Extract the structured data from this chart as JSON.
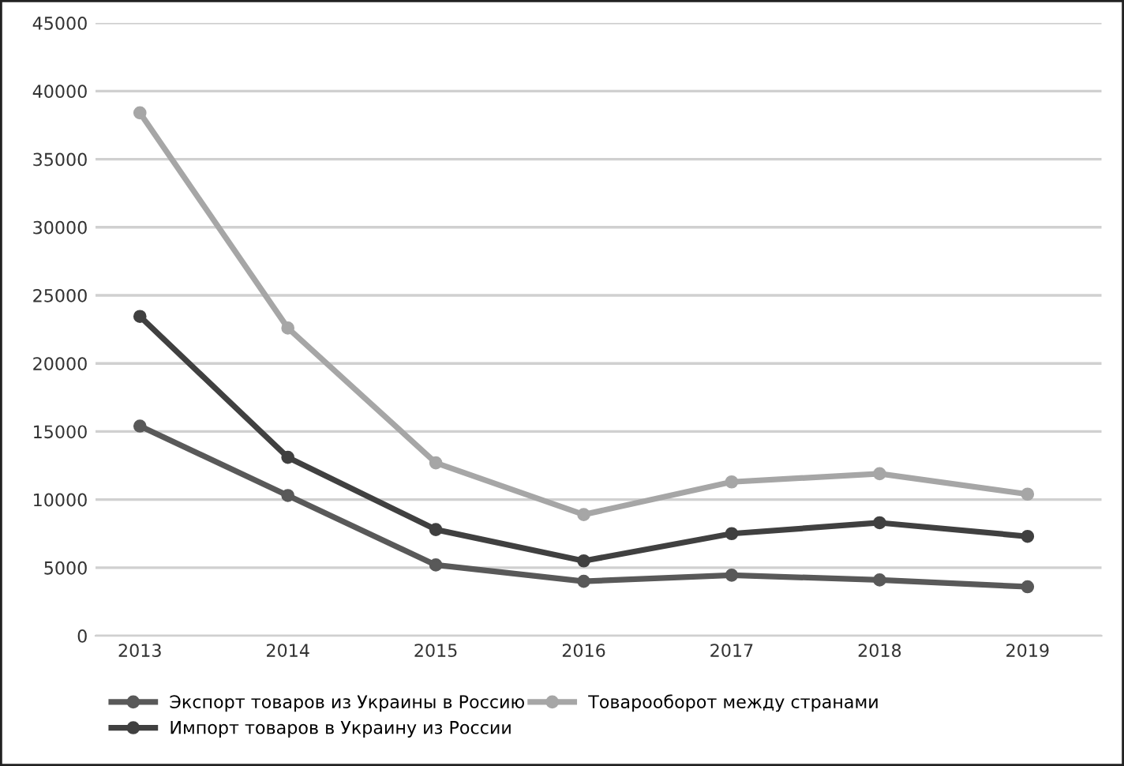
{
  "chart_data": {
    "type": "line",
    "categories": [
      "2013",
      "2014",
      "2015",
      "2016",
      "2017",
      "2018",
      "2019"
    ],
    "series": [
      {
        "name": "Экспорт товаров из Украины в Россию",
        "color": "#595959",
        "values": [
          15400,
          10300,
          5200,
          4000,
          4450,
          4100,
          3600
        ]
      },
      {
        "name": "Импорт товаров в Украину из России",
        "color": "#404040",
        "values": [
          23450,
          13100,
          7800,
          5500,
          7500,
          8300,
          7300
        ]
      },
      {
        "name": "Товарооборот между странами",
        "color": "#a6a6a6",
        "values": [
          38400,
          22600,
          12700,
          8900,
          11300,
          11900,
          10400
        ]
      }
    ],
    "ylim": [
      0,
      45000
    ],
    "yticks": [
      0,
      5000,
      10000,
      15000,
      20000,
      25000,
      30000,
      35000,
      40000,
      45000
    ],
    "grid": "y",
    "legend": "bottom",
    "marker": "circle",
    "line_style": "solid"
  }
}
